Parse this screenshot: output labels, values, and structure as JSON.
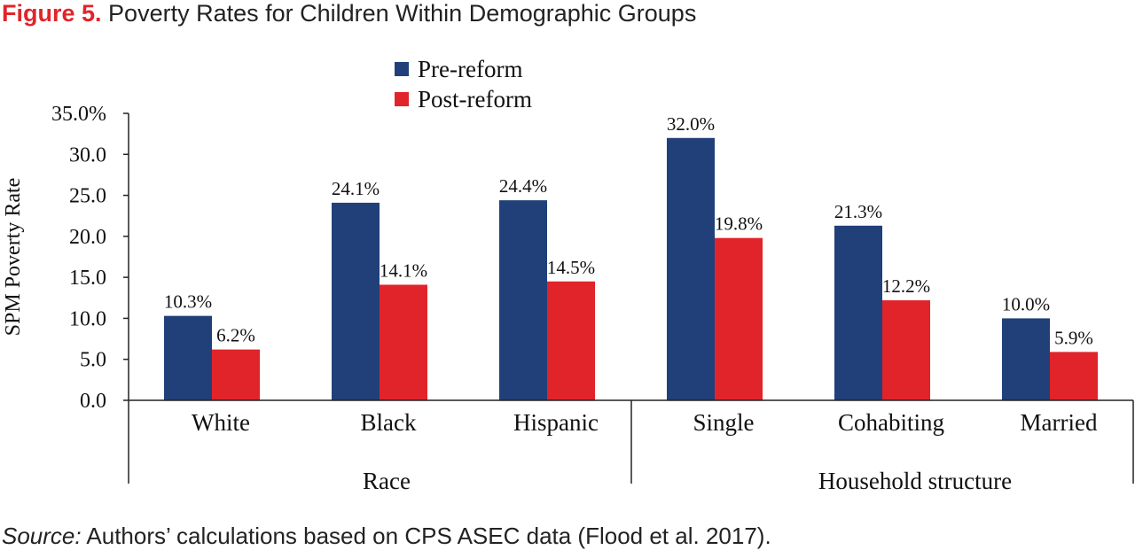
{
  "title": {
    "figure_label": "Figure 5.",
    "text": "Poverty Rates for Children Within Demographic Groups"
  },
  "source": {
    "label": "Source:",
    "text": "Authors’ calculations based on CPS ASEC data (Flood et al. 2017)."
  },
  "colors": {
    "pre_reform": "#21407a",
    "post_reform": "#e1242a",
    "title_accent": "#e1242a"
  },
  "chart_data": {
    "type": "bar",
    "ylabel": "SPM Poverty Rate",
    "ylim": [
      0,
      35
    ],
    "yticks": [
      "0.0",
      "5.0",
      "10.0",
      "15.0",
      "20.0",
      "25.0",
      "30.0",
      "35.0%"
    ],
    "ytick_values": [
      0,
      5,
      10,
      15,
      20,
      25,
      30,
      35
    ],
    "grid": false,
    "legend_position": "top-center",
    "categories": [
      "White",
      "Black",
      "Hispanic",
      "Single",
      "Cohabiting",
      "Married"
    ],
    "groups": [
      {
        "name": "Race",
        "categories": [
          "White",
          "Black",
          "Hispanic"
        ]
      },
      {
        "name": "Household structure",
        "categories": [
          "Single",
          "Cohabiting",
          "Married"
        ]
      }
    ],
    "series": [
      {
        "name": "Pre-reform",
        "values": [
          10.3,
          24.1,
          24.4,
          32.0,
          21.3,
          10.0
        ],
        "labels": [
          "10.3%",
          "24.1%",
          "24.4%",
          "32.0%",
          "21.3%",
          "10.0%"
        ]
      },
      {
        "name": "Post-reform",
        "values": [
          6.2,
          14.1,
          14.5,
          19.8,
          12.2,
          5.9
        ],
        "labels": [
          "6.2%",
          "14.1%",
          "14.5%",
          "19.8%",
          "12.2%",
          "5.9%"
        ]
      }
    ]
  }
}
